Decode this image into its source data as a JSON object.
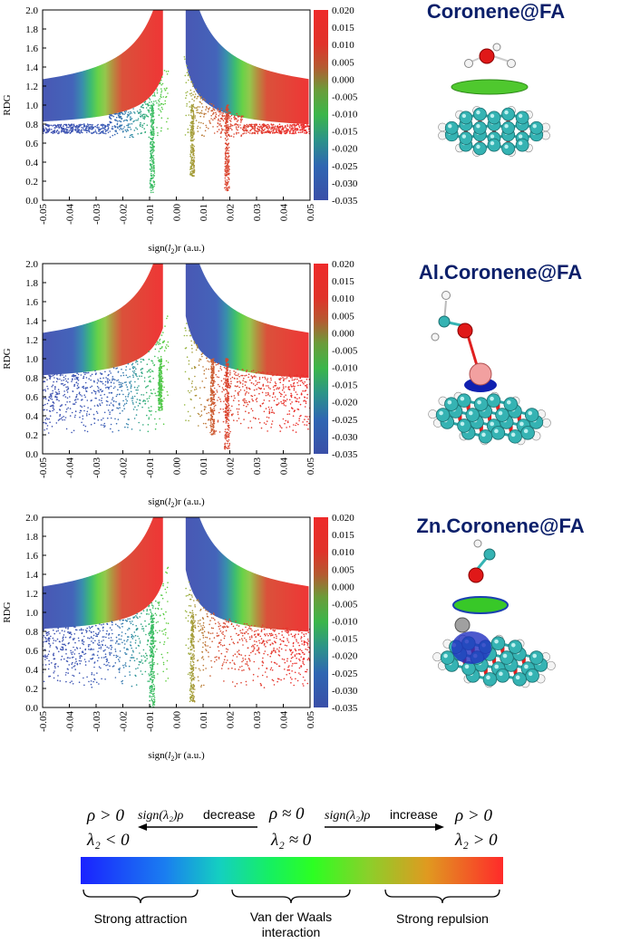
{
  "colors": {
    "title": "#0b1f6a",
    "gradient": [
      "#3a4fb0",
      "#2f6bb8",
      "#2ea082",
      "#2ecf4a",
      "#7dc84a",
      "#c08a30",
      "#e03a2a",
      "#ee2a2a"
    ],
    "legend_gradient": [
      "#1a2bff",
      "#1aa0e8",
      "#16e08a",
      "#22ff22",
      "#8ad02a",
      "#e0a020",
      "#ff2a2a"
    ]
  },
  "chart_data": [
    {
      "type": "scatter",
      "title": "Coronene@FA",
      "xlabel_pre": "sign(",
      "xlabel_sym": "l",
      "xlabel_sub": "2",
      "xlabel_post": ")r (a.u.)",
      "ylabel": "RDG",
      "xlim": [
        -0.05,
        0.05
      ],
      "ylim": [
        0.0,
        2.0
      ],
      "xticks": [
        "-0.05",
        "-0.04",
        "-0.03",
        "-0.02",
        "-0.01",
        "0.00",
        "0.01",
        "0.02",
        "0.03",
        "0.04",
        "0.05"
      ],
      "yticks": [
        "0.0",
        "0.2",
        "0.4",
        "0.6",
        "0.8",
        "1.0",
        "1.2",
        "1.4",
        "1.6",
        "1.8",
        "2.0"
      ],
      "colorbar_ticks": [
        "0.020",
        "0.015",
        "0.010",
        "0.005",
        "0.000",
        "-0.005",
        "-0.010",
        "-0.015",
        "-0.020",
        "-0.025",
        "-0.030",
        "-0.035"
      ],
      "colorbar_range": [
        -0.035,
        0.02
      ],
      "spikes": [
        {
          "x": -0.009,
          "y_min": 0.08
        },
        {
          "x": 0.006,
          "y_min": 0.25
        },
        {
          "x": 0.019,
          "y_min": 0.1
        }
      ],
      "scatter_low": 0.0
    },
    {
      "type": "scatter",
      "title": "Al.Coronene@FA",
      "xlabel_pre": "sign(",
      "xlabel_sym": "l",
      "xlabel_sub": "2",
      "xlabel_post": ")r (a.u.)",
      "ylabel": "RDG",
      "xlim": [
        -0.05,
        0.05
      ],
      "ylim": [
        0.0,
        2.0
      ],
      "xticks": [
        "-0.05",
        "-0.04",
        "-0.03",
        "-0.02",
        "-0.01",
        "0.00",
        "0.01",
        "0.02",
        "0.03",
        "0.04",
        "0.05"
      ],
      "yticks": [
        "0.0",
        "0.2",
        "0.4",
        "0.6",
        "0.8",
        "1.0",
        "1.2",
        "1.4",
        "1.6",
        "1.8",
        "2.0"
      ],
      "colorbar_ticks": [
        "0.020",
        "0.015",
        "0.010",
        "0.005",
        "0.000",
        "-0.005",
        "-0.010",
        "-0.015",
        "-0.020",
        "-0.025",
        "-0.030",
        "-0.035"
      ],
      "colorbar_range": [
        -0.035,
        0.02
      ],
      "spikes": [
        {
          "x": -0.006,
          "y_min": 0.45
        },
        {
          "x": 0.0135,
          "y_min": 0.2
        },
        {
          "x": 0.019,
          "y_min": 0.05
        }
      ],
      "scatter_low": 0.2
    },
    {
      "type": "scatter",
      "title": "Zn.Coronene@FA",
      "xlabel_pre": "sign(",
      "xlabel_sym": "l",
      "xlabel_sub": "2",
      "xlabel_post": ")r (a.u.)",
      "ylabel": "RDG",
      "xlim": [
        -0.05,
        0.05
      ],
      "ylim": [
        0.0,
        2.0
      ],
      "xticks": [
        "-0.05",
        "-0.04",
        "-0.03",
        "-0.02",
        "-0.01",
        "0.00",
        "0.01",
        "0.02",
        "0.03",
        "0.04",
        "0.05"
      ],
      "yticks": [
        "0.0",
        "0.2",
        "0.4",
        "0.6",
        "0.8",
        "1.0",
        "1.2",
        "1.4",
        "1.6",
        "1.8",
        "2.0"
      ],
      "colorbar_ticks": [
        "0.020",
        "0.015",
        "0.010",
        "0.005",
        "0.000",
        "-0.005",
        "-0.010",
        "-0.015",
        "-0.020",
        "-0.025",
        "-0.030",
        "-0.035"
      ],
      "colorbar_range": [
        -0.035,
        0.02
      ],
      "spikes": [
        {
          "x": -0.009,
          "y_min": 0.0
        },
        {
          "x": 0.006,
          "y_min": 0.05
        }
      ],
      "scatter_low": 0.2
    }
  ],
  "legend": {
    "rho_left": "ρ > 0",
    "lambda_left": "λ₂ < 0",
    "decrease_italic": "sign(λ₂)ρ",
    "decrease_word": "decrease",
    "rho_mid": "ρ ≈ 0",
    "lambda_mid": "λ₂ ≈ 0",
    "increase_italic": "sign(λ₂)ρ",
    "increase_word": "increase",
    "rho_right": "ρ > 0",
    "lambda_right": "λ₂ > 0",
    "label_attraction": "Strong attraction",
    "label_vdw_1": "Van der Waals",
    "label_vdw_2": "interaction",
    "label_repulsion": "Strong repulsion"
  }
}
